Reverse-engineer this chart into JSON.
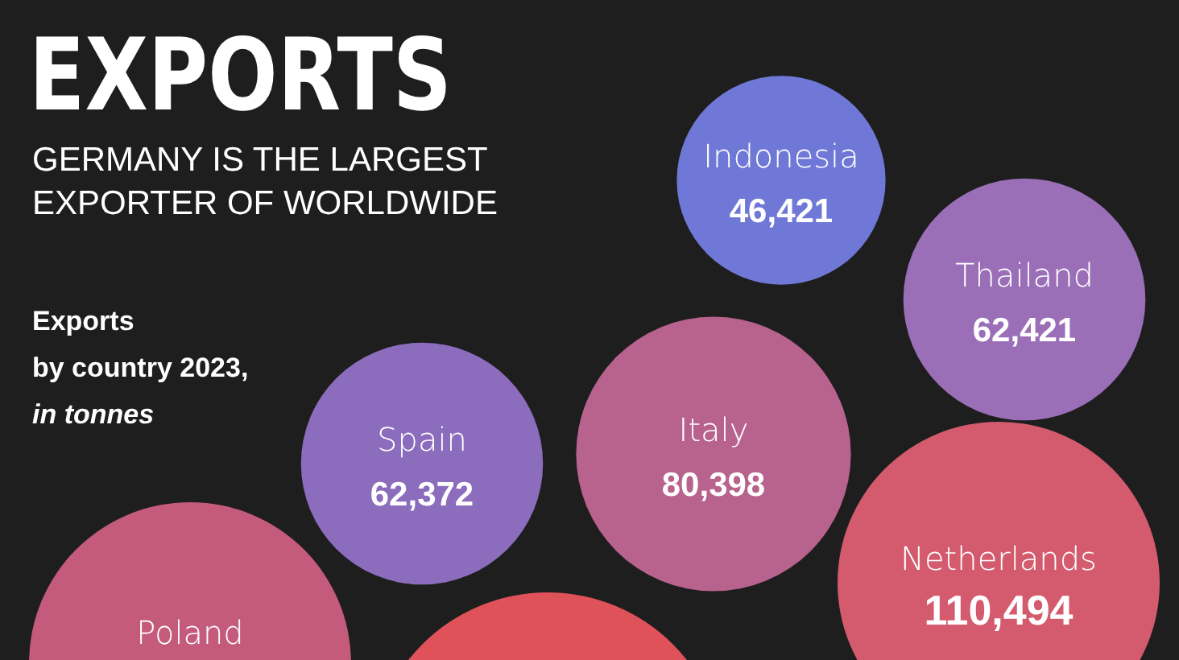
{
  "chart_data": {
    "type": "other",
    "title": "EXPORTS",
    "subtitle": "GERMANY IS THE LARGEST EXPORTER OF WORLDWIDE",
    "annotations": [
      "Exports",
      "by country 2023,",
      "in tonnes"
    ],
    "categories": [
      "Indonesia",
      "Thailand",
      "Spain",
      "Italy",
      "Netherlands",
      "Poland",
      null
    ],
    "values": [
      46421,
      62421,
      62372,
      80398,
      110494,
      null,
      null
    ],
    "value_labels": [
      "46,421",
      "62,421",
      "62,372",
      "80,398",
      "110,494",
      null,
      null
    ],
    "colors": [
      "#6f78d6",
      "#9a6fb8",
      "#8c6cbc",
      "#b8628e",
      "#d45a6e",
      "#c45a7c",
      "#e0525a"
    ]
  }
}
